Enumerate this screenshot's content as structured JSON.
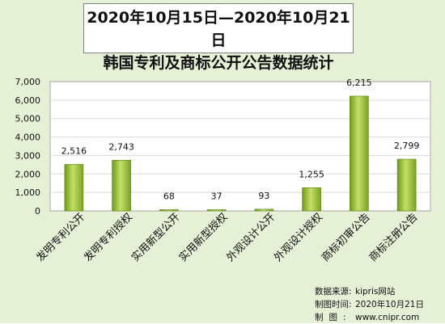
{
  "title": {
    "line1": "2020年10月15日—2020年10月21日",
    "line2": "韩国专利及商标公开公告数据统计"
  },
  "colors": {
    "background": "#e6f0d6",
    "plot_area": "#ffffff",
    "bar_dark": "#6f9a16",
    "bar_light": "#c4e06a",
    "grid": "#d9d9d9"
  },
  "chart_data": {
    "type": "bar",
    "categories": [
      "发明专利公开",
      "发明专利授权",
      "实用新型公开",
      "实用新型授权",
      "外观设计公开",
      "外观设计授权",
      "商标初审公告",
      "商标注册公告"
    ],
    "values": [
      2516,
      2743,
      68,
      37,
      93,
      1255,
      6215,
      2799
    ],
    "data_labels": [
      "2,516",
      "2,743",
      "68",
      "37",
      "93",
      "1,255",
      "6,215",
      "2,799"
    ],
    "y_ticks": [
      "0",
      "1,000",
      "2,000",
      "3,000",
      "4,000",
      "5,000",
      "6,000",
      "7,000"
    ],
    "ylim": [
      0,
      7000
    ],
    "grid": true
  },
  "footer": {
    "source_key": "数据来源:",
    "source_val": "kipris网站",
    "time_key": "制图时间:",
    "time_val": "2020年10月21日",
    "maker_key": "制图:",
    "maker_val": "www.cnipr.com"
  }
}
